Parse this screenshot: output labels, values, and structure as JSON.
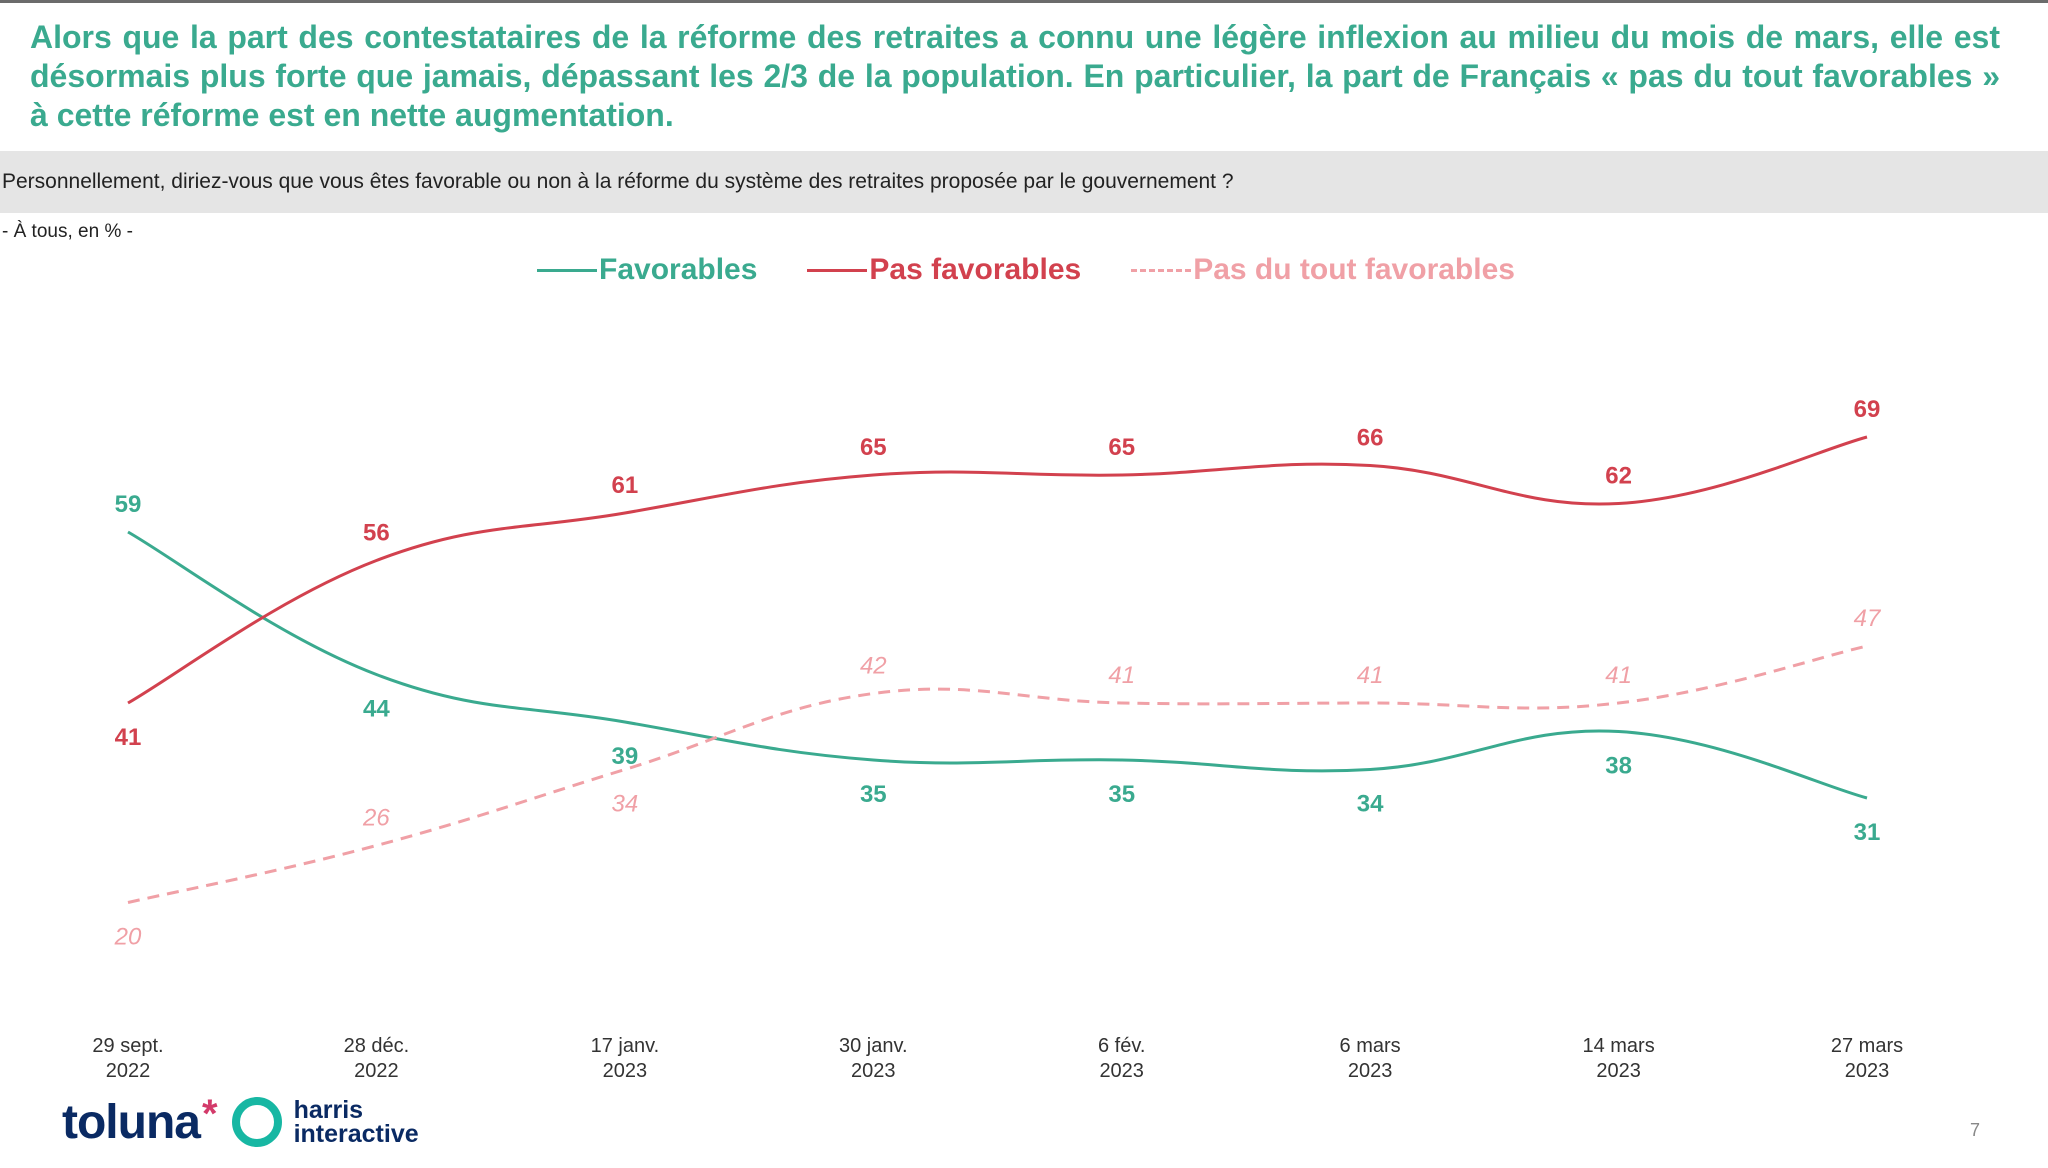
{
  "headline": "Alors que la part des contestataires de la réforme des retraites a connu une légère inflexion au milieu du mois de mars, elle est désormais plus forte que jamais, dépassant les 2/3 de la population. En particulier, la part de Français « pas du tout favorables » à cette réforme est en nette augmentation.",
  "question": "Personnellement, diriez-vous que vous êtes favorable ou non à la réforme du système des retraites proposée par le gouvernement ?",
  "base": "- À tous, en % -",
  "page_number": "7",
  "logos": {
    "brand_a": "toluna",
    "brand_b_line1": "harris",
    "brand_b_line2": "interactive"
  },
  "chart_data": {
    "type": "line",
    "categories": [
      [
        "29 sept.",
        "2022"
      ],
      [
        "28 déc.",
        "2022"
      ],
      [
        "17 janv.",
        "2023"
      ],
      [
        "30 janv.",
        "2023"
      ],
      [
        "6 fév.",
        "2023"
      ],
      [
        "6 mars",
        "2023"
      ],
      [
        "14 mars",
        "2023"
      ],
      [
        "27 mars",
        "2023"
      ]
    ],
    "series": [
      {
        "name": "Favorables",
        "values": [
          59,
          44,
          39,
          35,
          35,
          34,
          38,
          31
        ],
        "color": "#3aaa8f",
        "style": "solid",
        "label_style": "bold"
      },
      {
        "name": "Pas favorables",
        "values": [
          41,
          56,
          61,
          65,
          65,
          66,
          62,
          69
        ],
        "color": "#d2414e",
        "style": "solid",
        "label_style": "bold"
      },
      {
        "name": "Pas du tout favorables",
        "values": [
          20,
          26,
          34,
          42,
          41,
          41,
          41,
          47
        ],
        "color": "#f0a0a6",
        "style": "dashed",
        "label_style": "italic"
      }
    ],
    "ylim": [
      15,
      75
    ],
    "grid": false,
    "legend_position": "top-center"
  }
}
